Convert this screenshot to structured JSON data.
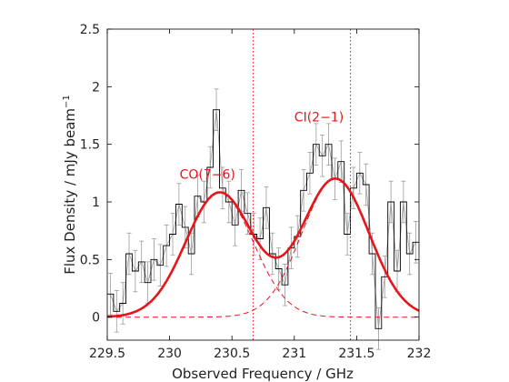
{
  "chart_data": {
    "type": "line",
    "title": "",
    "xlabel": "Observed Frequency / GHz",
    "ylabel": "Flux Density / mJy beam",
    "ylabel_sup": "−1",
    "xlim": [
      229.5,
      232
    ],
    "ylim": [
      -0.2,
      2.5
    ],
    "xticks": [
      229.5,
      230,
      230.5,
      231,
      231.5,
      232
    ],
    "xtick_labels": [
      "229.5",
      "230",
      "230.5",
      "231",
      "231.5",
      "232"
    ],
    "yticks": [
      0,
      0.5,
      1,
      1.5,
      2,
      2.5
    ],
    "ytick_labels": [
      "0",
      "0.5",
      "1",
      "1.5",
      "2",
      "2.5"
    ],
    "grid": false,
    "annotations": [
      {
        "text": "CO(7−6)",
        "x": 230.08,
        "y": 1.2,
        "color": "#e8141b"
      },
      {
        "text": "CI(2−1)",
        "x": 231.0,
        "y": 1.7,
        "color": "#e8141b"
      }
    ],
    "vlines": [
      {
        "x": 230.67,
        "color": "#e8141b",
        "style": "dotted"
      },
      {
        "x": 231.45,
        "color": "#e8141b",
        "style": "dotted"
      }
    ],
    "series": [
      {
        "kind": "step",
        "color": "#000000",
        "x": [
          229.5,
          229.55,
          229.6,
          229.65,
          229.7,
          229.75,
          229.8,
          229.85,
          229.9,
          229.95,
          230.0,
          230.05,
          230.1,
          230.15,
          230.2,
          230.25,
          230.3,
          230.35,
          230.4,
          230.45,
          230.5,
          230.55,
          230.6,
          230.65,
          230.7,
          230.75,
          230.8,
          230.85,
          230.9,
          230.95,
          231.0,
          231.05,
          231.1,
          231.15,
          231.2,
          231.25,
          231.3,
          231.35,
          231.4,
          231.45,
          231.5,
          231.55,
          231.6,
          231.65,
          231.7,
          231.75,
          231.8,
          231.85,
          231.9,
          231.95
        ],
        "y": [
          0.2,
          0.05,
          0.12,
          0.55,
          0.4,
          0.48,
          0.3,
          0.5,
          0.45,
          0.62,
          0.72,
          0.98,
          0.78,
          0.55,
          1.05,
          1.0,
          1.3,
          1.8,
          1.12,
          1.0,
          0.8,
          1.1,
          0.9,
          0.72,
          0.68,
          0.95,
          0.55,
          0.42,
          0.28,
          0.6,
          0.7,
          1.1,
          1.25,
          1.5,
          1.4,
          1.5,
          1.2,
          1.35,
          0.72,
          1.12,
          1.25,
          1.15,
          0.55,
          -0.1,
          0.35,
          1.0,
          0.4,
          1.0,
          0.55,
          0.65
        ],
        "yerr": 0.18
      },
      {
        "kind": "errorbar",
        "color": "#9a9a9a",
        "x": [
          229.525,
          229.575,
          229.625,
          229.675,
          229.725,
          229.775,
          229.825,
          229.875,
          229.925,
          229.975,
          230.025,
          230.075,
          230.125,
          230.175,
          230.225,
          230.275,
          230.325,
          230.375,
          230.425,
          230.475,
          230.525,
          230.575,
          230.625,
          230.675,
          230.725,
          230.775,
          230.825,
          230.875,
          230.925,
          230.975,
          231.025,
          231.075,
          231.125,
          231.175,
          231.225,
          231.275,
          231.325,
          231.375,
          231.425,
          231.475,
          231.525,
          231.575,
          231.625,
          231.675,
          231.725,
          231.775,
          231.825,
          231.875,
          231.925,
          231.975
        ],
        "y": [
          0.2,
          0.05,
          0.12,
          0.55,
          0.4,
          0.48,
          0.3,
          0.5,
          0.45,
          0.62,
          0.72,
          0.98,
          0.78,
          0.55,
          1.05,
          1.0,
          1.3,
          1.8,
          1.12,
          1.0,
          0.8,
          1.1,
          0.9,
          0.72,
          0.68,
          0.95,
          0.55,
          0.42,
          0.28,
          0.6,
          0.7,
          1.1,
          1.25,
          1.5,
          1.4,
          1.5,
          1.2,
          1.35,
          0.72,
          1.12,
          1.25,
          1.15,
          0.55,
          -0.1,
          0.35,
          1.0,
          0.4,
          1.0,
          0.55,
          0.65
        ],
        "yerr": 0.18
      },
      {
        "kind": "fit",
        "color": "#e8141b",
        "gaussians": [
          {
            "amp": 1.08,
            "center": 230.4,
            "sigma": 0.27
          },
          {
            "amp": 1.2,
            "center": 231.33,
            "sigma": 0.27
          }
        ],
        "components_dashed": true
      }
    ]
  }
}
